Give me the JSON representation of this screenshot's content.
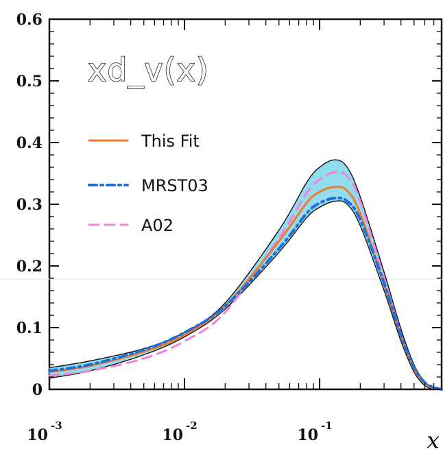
{
  "chart_data": {
    "type": "line",
    "title": "xd_v(x)",
    "xlabel": "x",
    "ylabel": "",
    "xscale": "log",
    "xlim": [
      0.001,
      0.8
    ],
    "ylim": [
      0,
      0.6
    ],
    "y_ticks": [
      "0",
      "0.1",
      "0.2",
      "0.3",
      "0.4",
      "0.5",
      "0.6"
    ],
    "x_ticks": [
      {
        "base": "10",
        "exp": "-3"
      },
      {
        "base": "10",
        "exp": "-2"
      },
      {
        "base": "10",
        "exp": "-1"
      }
    ],
    "legend_position": "top-left",
    "band": {
      "name": "uncertainty band",
      "color": "#6ed0ea",
      "x": [
        0.001,
        0.002,
        0.005,
        0.01,
        0.02,
        0.05,
        0.08,
        0.1,
        0.13,
        0.16,
        0.2,
        0.3,
        0.4,
        0.5,
        0.6,
        0.7,
        0.8
      ],
      "upper": [
        0.035,
        0.046,
        0.066,
        0.092,
        0.14,
        0.258,
        0.335,
        0.36,
        0.372,
        0.36,
        0.312,
        0.19,
        0.098,
        0.04,
        0.012,
        0.003,
        0.0
      ],
      "lower": [
        0.018,
        0.03,
        0.056,
        0.085,
        0.13,
        0.222,
        0.278,
        0.295,
        0.305,
        0.3,
        0.265,
        0.16,
        0.078,
        0.028,
        0.006,
        0.001,
        0.0
      ]
    },
    "series": [
      {
        "name": "This Fit",
        "color": "#f07a2a",
        "dash": "solid",
        "x": [
          0.001,
          0.002,
          0.005,
          0.01,
          0.02,
          0.05,
          0.08,
          0.1,
          0.13,
          0.16,
          0.2,
          0.3,
          0.4,
          0.5,
          0.6,
          0.7,
          0.8
        ],
        "y": [
          0.028,
          0.038,
          0.061,
          0.088,
          0.135,
          0.24,
          0.302,
          0.32,
          0.328,
          0.322,
          0.285,
          0.17,
          0.085,
          0.033,
          0.009,
          0.002,
          0.0
        ]
      },
      {
        "name": "MRST03",
        "color": "#1e6fd8",
        "dash": "dashdot",
        "x": [
          0.001,
          0.002,
          0.005,
          0.01,
          0.02,
          0.05,
          0.08,
          0.1,
          0.13,
          0.16,
          0.2,
          0.3,
          0.4,
          0.5,
          0.6,
          0.7,
          0.8
        ],
        "y": [
          0.03,
          0.04,
          0.064,
          0.092,
          0.135,
          0.228,
          0.285,
          0.302,
          0.31,
          0.305,
          0.275,
          0.172,
          0.088,
          0.036,
          0.011,
          0.003,
          0.0
        ]
      },
      {
        "name": "A02",
        "color": "#f080d8",
        "dash": "dashed",
        "x": [
          0.001,
          0.002,
          0.005,
          0.01,
          0.02,
          0.05,
          0.08,
          0.1,
          0.13,
          0.16,
          0.2,
          0.3,
          0.4,
          0.5,
          0.6,
          0.7,
          0.8
        ],
        "y": [
          0.022,
          0.03,
          0.05,
          0.078,
          0.125,
          0.245,
          0.318,
          0.34,
          0.352,
          0.345,
          0.305,
          0.18,
          0.09,
          0.035,
          0.01,
          0.002,
          0.0
        ]
      }
    ]
  }
}
